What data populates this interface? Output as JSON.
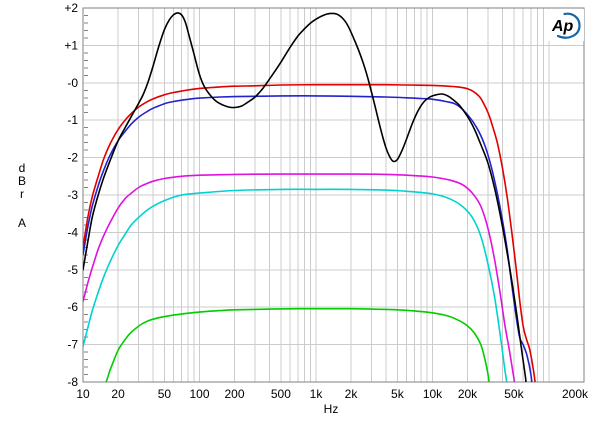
{
  "logo": {
    "text": "Ap",
    "color": "#1766a8"
  },
  "axis_left_label": {
    "lines": [
      "d",
      "B",
      "r"
    ],
    "unit": "A"
  },
  "chart_data": {
    "type": "line",
    "title": "",
    "xlabel": "Hz",
    "ylabel": "dBr A",
    "x_scale": "log",
    "xlim": [
      10,
      200000
    ],
    "ylim": [
      -8,
      2
    ],
    "grid": "on",
    "grid_color": "#cccccc",
    "border_color": "#808080",
    "tick_color": "#808080",
    "legend": "none",
    "x_ticks": [
      {
        "v": 10,
        "label": "10"
      },
      {
        "v": 20,
        "label": "20"
      },
      {
        "v": 50,
        "label": "50"
      },
      {
        "v": 100,
        "label": "100"
      },
      {
        "v": 200,
        "label": "200"
      },
      {
        "v": 500,
        "label": "500"
      },
      {
        "v": 1000,
        "label": "1k"
      },
      {
        "v": 2000,
        "label": "2k"
      },
      {
        "v": 5000,
        "label": "5k"
      },
      {
        "v": 10000,
        "label": "10k"
      },
      {
        "v": 20000,
        "label": "20k"
      },
      {
        "v": 50000,
        "label": "50k"
      },
      {
        "v": 200000,
        "label": "200k"
      }
    ],
    "y_ticks": [
      {
        "v": 2,
        "label": "+2"
      },
      {
        "v": 1,
        "label": "+1"
      },
      {
        "v": 0,
        "label": "-0"
      },
      {
        "v": -1,
        "label": "-1"
      },
      {
        "v": -2,
        "label": "-2"
      },
      {
        "v": -3,
        "label": "-3"
      },
      {
        "v": -4,
        "label": "-4"
      },
      {
        "v": -5,
        "label": "-5"
      },
      {
        "v": -6,
        "label": "-6"
      },
      {
        "v": -7,
        "label": "-7"
      },
      {
        "v": -8,
        "label": "-8"
      }
    ],
    "y_minor_tick_step": 0.2,
    "series": [
      {
        "name": "green",
        "color": "#00cc00",
        "points": [
          [
            14,
            -8.5
          ],
          [
            15,
            -8.2
          ],
          [
            16,
            -7.95
          ],
          [
            17,
            -7.7
          ],
          [
            18,
            -7.5
          ],
          [
            20,
            -7.15
          ],
          [
            22,
            -6.95
          ],
          [
            25,
            -6.72
          ],
          [
            28,
            -6.58
          ],
          [
            32,
            -6.45
          ],
          [
            36,
            -6.37
          ],
          [
            40,
            -6.32
          ],
          [
            50,
            -6.25
          ],
          [
            60,
            -6.21
          ],
          [
            80,
            -6.16
          ],
          [
            100,
            -6.13
          ],
          [
            150,
            -6.09
          ],
          [
            200,
            -6.07
          ],
          [
            400,
            -6.05
          ],
          [
            700,
            -6.04
          ],
          [
            1000,
            -6.04
          ],
          [
            2000,
            -6.04
          ],
          [
            3000,
            -6.05
          ],
          [
            5000,
            -6.07
          ],
          [
            7000,
            -6.1
          ],
          [
            10000,
            -6.15
          ],
          [
            13000,
            -6.22
          ],
          [
            16000,
            -6.32
          ],
          [
            20000,
            -6.5
          ],
          [
            23000,
            -6.7
          ],
          [
            26000,
            -7.0
          ],
          [
            28000,
            -7.35
          ],
          [
            30000,
            -7.8
          ],
          [
            32000,
            -8.5
          ]
        ]
      },
      {
        "name": "cyan",
        "color": "#00d2d2",
        "points": [
          [
            10,
            -7.05
          ],
          [
            11,
            -6.55
          ],
          [
            12,
            -6.1
          ],
          [
            13.5,
            -5.6
          ],
          [
            15,
            -5.2
          ],
          [
            17,
            -4.8
          ],
          [
            20,
            -4.35
          ],
          [
            23,
            -4.05
          ],
          [
            26,
            -3.8
          ],
          [
            30,
            -3.6
          ],
          [
            35,
            -3.42
          ],
          [
            40,
            -3.3
          ],
          [
            50,
            -3.15
          ],
          [
            70,
            -3.0
          ],
          [
            100,
            -2.95
          ],
          [
            200,
            -2.88
          ],
          [
            500,
            -2.85
          ],
          [
            1000,
            -2.85
          ],
          [
            2000,
            -2.85
          ],
          [
            4000,
            -2.87
          ],
          [
            6000,
            -2.9
          ],
          [
            10000,
            -2.97
          ],
          [
            14000,
            -3.1
          ],
          [
            18000,
            -3.3
          ],
          [
            22000,
            -3.6
          ],
          [
            26000,
            -4.1
          ],
          [
            30000,
            -4.85
          ],
          [
            34000,
            -5.7
          ],
          [
            38000,
            -6.7
          ],
          [
            42000,
            -7.7
          ],
          [
            45000,
            -8.3
          ],
          [
            47000,
            -8.7
          ]
        ]
      },
      {
        "name": "magenta",
        "color": "#e012e0",
        "points": [
          [
            10,
            -5.85
          ],
          [
            11,
            -5.35
          ],
          [
            12,
            -4.95
          ],
          [
            13.5,
            -4.45
          ],
          [
            15,
            -4.1
          ],
          [
            17,
            -3.75
          ],
          [
            20,
            -3.35
          ],
          [
            23,
            -3.1
          ],
          [
            26,
            -2.95
          ],
          [
            30,
            -2.8
          ],
          [
            35,
            -2.7
          ],
          [
            40,
            -2.63
          ],
          [
            50,
            -2.56
          ],
          [
            70,
            -2.5
          ],
          [
            100,
            -2.47
          ],
          [
            200,
            -2.45
          ],
          [
            500,
            -2.44
          ],
          [
            1000,
            -2.44
          ],
          [
            2000,
            -2.44
          ],
          [
            4000,
            -2.45
          ],
          [
            6000,
            -2.47
          ],
          [
            10000,
            -2.52
          ],
          [
            14000,
            -2.6
          ],
          [
            18000,
            -2.72
          ],
          [
            22000,
            -2.95
          ],
          [
            26000,
            -3.3
          ],
          [
            30000,
            -3.9
          ],
          [
            34000,
            -4.7
          ],
          [
            38000,
            -5.6
          ],
          [
            42000,
            -6.5
          ],
          [
            46000,
            -7.2
          ],
          [
            50000,
            -7.9
          ],
          [
            54000,
            -8.6
          ]
        ]
      },
      {
        "name": "blue",
        "color": "#2222d0",
        "points": [
          [
            10,
            -4.6
          ],
          [
            11,
            -3.85
          ],
          [
            12,
            -3.3
          ],
          [
            13.5,
            -2.75
          ],
          [
            15,
            -2.35
          ],
          [
            17,
            -1.95
          ],
          [
            20,
            -1.55
          ],
          [
            23,
            -1.3
          ],
          [
            26,
            -1.1
          ],
          [
            30,
            -0.92
          ],
          [
            35,
            -0.78
          ],
          [
            40,
            -0.68
          ],
          [
            50,
            -0.56
          ],
          [
            60,
            -0.5
          ],
          [
            80,
            -0.44
          ],
          [
            100,
            -0.41
          ],
          [
            150,
            -0.38
          ],
          [
            200,
            -0.37
          ],
          [
            300,
            -0.36
          ],
          [
            500,
            -0.35
          ],
          [
            1000,
            -0.35
          ],
          [
            2000,
            -0.36
          ],
          [
            4000,
            -0.38
          ],
          [
            6000,
            -0.4
          ],
          [
            8000,
            -0.42
          ],
          [
            10000,
            -0.44
          ],
          [
            13000,
            -0.5
          ],
          [
            16000,
            -0.58
          ],
          [
            20000,
            -0.85
          ],
          [
            24000,
            -1.2
          ],
          [
            28000,
            -1.65
          ],
          [
            32000,
            -2.25
          ],
          [
            36000,
            -2.95
          ],
          [
            40000,
            -3.7
          ],
          [
            44000,
            -4.5
          ],
          [
            48000,
            -5.4
          ],
          [
            52000,
            -6.2
          ],
          [
            56000,
            -6.8
          ],
          [
            60000,
            -7.0
          ],
          [
            65000,
            -7.3
          ],
          [
            70000,
            -7.8
          ],
          [
            74000,
            -8.5
          ]
        ]
      },
      {
        "name": "red",
        "color": "#e00000",
        "points": [
          [
            10,
            -4.4
          ],
          [
            11,
            -3.6
          ],
          [
            12,
            -3.05
          ],
          [
            13.5,
            -2.5
          ],
          [
            15,
            -2.05
          ],
          [
            17,
            -1.65
          ],
          [
            20,
            -1.25
          ],
          [
            23,
            -1.0
          ],
          [
            26,
            -0.82
          ],
          [
            30,
            -0.65
          ],
          [
            35,
            -0.52
          ],
          [
            40,
            -0.43
          ],
          [
            50,
            -0.32
          ],
          [
            60,
            -0.26
          ],
          [
            80,
            -0.19
          ],
          [
            100,
            -0.15
          ],
          [
            150,
            -0.11
          ],
          [
            200,
            -0.09
          ],
          [
            300,
            -0.08
          ],
          [
            500,
            -0.06
          ],
          [
            1000,
            -0.05
          ],
          [
            2000,
            -0.05
          ],
          [
            4000,
            -0.05
          ],
          [
            6000,
            -0.06
          ],
          [
            10000,
            -0.07
          ],
          [
            15000,
            -0.1
          ],
          [
            20000,
            -0.16
          ],
          [
            25000,
            -0.35
          ],
          [
            28000,
            -0.6
          ],
          [
            30000,
            -0.8
          ],
          [
            32000,
            -1.05
          ],
          [
            36000,
            -1.6
          ],
          [
            40000,
            -2.3
          ],
          [
            44000,
            -3.1
          ],
          [
            48000,
            -4.0
          ],
          [
            52000,
            -4.9
          ],
          [
            56000,
            -5.8
          ],
          [
            60000,
            -6.5
          ],
          [
            64000,
            -6.85
          ],
          [
            68000,
            -7.1
          ],
          [
            72000,
            -7.5
          ],
          [
            76000,
            -8.0
          ],
          [
            79000,
            -8.5
          ]
        ]
      },
      {
        "name": "black",
        "color": "#000000",
        "points": [
          [
            10,
            -5.0
          ],
          [
            11,
            -4.25
          ],
          [
            12,
            -3.6
          ],
          [
            13.5,
            -3.0
          ],
          [
            15,
            -2.55
          ],
          [
            17,
            -2.1
          ],
          [
            20,
            -1.55
          ],
          [
            23,
            -1.2
          ],
          [
            26,
            -0.9
          ],
          [
            30,
            -0.55
          ],
          [
            33,
            -0.3
          ],
          [
            36,
            0.0
          ],
          [
            40,
            0.45
          ],
          [
            45,
            1.0
          ],
          [
            50,
            1.42
          ],
          [
            55,
            1.68
          ],
          [
            60,
            1.82
          ],
          [
            65,
            1.87
          ],
          [
            70,
            1.82
          ],
          [
            75,
            1.65
          ],
          [
            80,
            1.35
          ],
          [
            90,
            0.75
          ],
          [
            100,
            0.22
          ],
          [
            110,
            -0.1
          ],
          [
            125,
            -0.35
          ],
          [
            140,
            -0.5
          ],
          [
            160,
            -0.6
          ],
          [
            180,
            -0.65
          ],
          [
            200,
            -0.66
          ],
          [
            230,
            -0.62
          ],
          [
            260,
            -0.52
          ],
          [
            300,
            -0.38
          ],
          [
            350,
            -0.15
          ],
          [
            420,
            0.2
          ],
          [
            500,
            0.55
          ],
          [
            600,
            0.95
          ],
          [
            700,
            1.25
          ],
          [
            800,
            1.45
          ],
          [
            900,
            1.6
          ],
          [
            1000,
            1.7
          ],
          [
            1150,
            1.8
          ],
          [
            1300,
            1.85
          ],
          [
            1500,
            1.84
          ],
          [
            1700,
            1.72
          ],
          [
            1900,
            1.5
          ],
          [
            2200,
            1.05
          ],
          [
            2500,
            0.6
          ],
          [
            2800,
            0.1
          ],
          [
            3200,
            -0.6
          ],
          [
            3600,
            -1.25
          ],
          [
            4000,
            -1.75
          ],
          [
            4300,
            -1.98
          ],
          [
            4600,
            -2.1
          ],
          [
            5000,
            -2.05
          ],
          [
            5500,
            -1.8
          ],
          [
            6000,
            -1.5
          ],
          [
            6800,
            -1.05
          ],
          [
            7600,
            -0.72
          ],
          [
            8500,
            -0.5
          ],
          [
            9500,
            -0.38
          ],
          [
            10500,
            -0.33
          ],
          [
            12000,
            -0.3
          ],
          [
            13500,
            -0.35
          ],
          [
            15000,
            -0.45
          ],
          [
            17000,
            -0.6
          ],
          [
            20000,
            -0.9
          ],
          [
            23000,
            -1.25
          ],
          [
            26000,
            -1.65
          ],
          [
            30000,
            -2.15
          ],
          [
            34000,
            -2.8
          ],
          [
            38000,
            -3.5
          ],
          [
            43000,
            -4.4
          ],
          [
            48000,
            -5.3
          ],
          [
            53000,
            -6.2
          ],
          [
            58000,
            -7.1
          ],
          [
            63000,
            -7.9
          ],
          [
            66000,
            -8.5
          ]
        ]
      }
    ]
  }
}
